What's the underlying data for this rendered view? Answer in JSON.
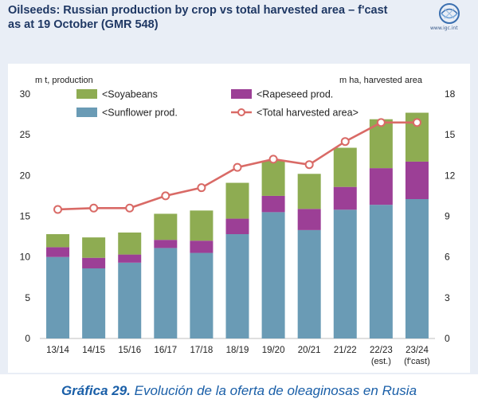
{
  "header": {
    "title_line1": "Oilseeds: Russian production by crop vs total harvested area – f'cast",
    "title_line2": "as at 19 October (GMR 548)",
    "logo_text": "www.igc.int"
  },
  "caption": {
    "label": "Gráfica 29.",
    "text": " Evolución de la oferta de oleaginosas en Rusia"
  },
  "colors": {
    "sunflower": "#6a9bb5",
    "rapeseed": "#9c3f96",
    "soyabeans": "#8eac52",
    "area_line": "#d96a66",
    "panel_bg": "#e9eef6",
    "title": "#1f3864"
  },
  "chart_data": {
    "type": "bar",
    "stacked": true,
    "left_axis_label": "m t, production",
    "right_axis_label": "m ha, harvested area",
    "categories": [
      "13/14",
      "14/15",
      "15/16",
      "16/17",
      "17/18",
      "18/19",
      "19/20",
      "20/21",
      "21/22",
      "22/23",
      "23/24"
    ],
    "category_sublabels": [
      "",
      "",
      "",
      "",
      "",
      "",
      "",
      "",
      "",
      "(est.)",
      "(f'cast)"
    ],
    "ylim_left": [
      0,
      30
    ],
    "yticks_left": [
      0,
      5,
      10,
      15,
      20,
      25,
      30
    ],
    "ylim_right": [
      0,
      18
    ],
    "yticks_right": [
      0,
      3,
      6,
      9,
      12,
      15,
      18
    ],
    "series": [
      {
        "name": "<Sunflower prod.",
        "color_key": "sunflower",
        "values": [
          10.0,
          8.6,
          9.3,
          11.1,
          10.5,
          12.8,
          15.5,
          13.3,
          15.8,
          16.4,
          17.1
        ]
      },
      {
        "name": "<Rapeseed prod.",
        "color_key": "rapeseed",
        "values": [
          1.2,
          1.3,
          1.0,
          1.0,
          1.5,
          1.9,
          2.0,
          2.6,
          2.8,
          4.5,
          4.6
        ]
      },
      {
        "name": "<Soyabeans",
        "color_key": "soyabeans",
        "values": [
          1.6,
          2.5,
          2.7,
          3.2,
          3.7,
          4.4,
          4.3,
          4.3,
          4.8,
          6.0,
          6.0
        ]
      }
    ],
    "line_series": {
      "name": "<Total harvested area>",
      "axis": "right",
      "color_key": "area_line",
      "values": [
        9.5,
        9.6,
        9.6,
        10.5,
        11.1,
        12.6,
        13.2,
        12.8,
        14.5,
        15.9,
        15.9
      ]
    },
    "legend": {
      "placement": "top-left",
      "entries": [
        "<Soyabeans",
        "<Rapeseed prod.",
        "<Sunflower prod.",
        "<Total harvested area>"
      ]
    },
    "grid": false
  }
}
